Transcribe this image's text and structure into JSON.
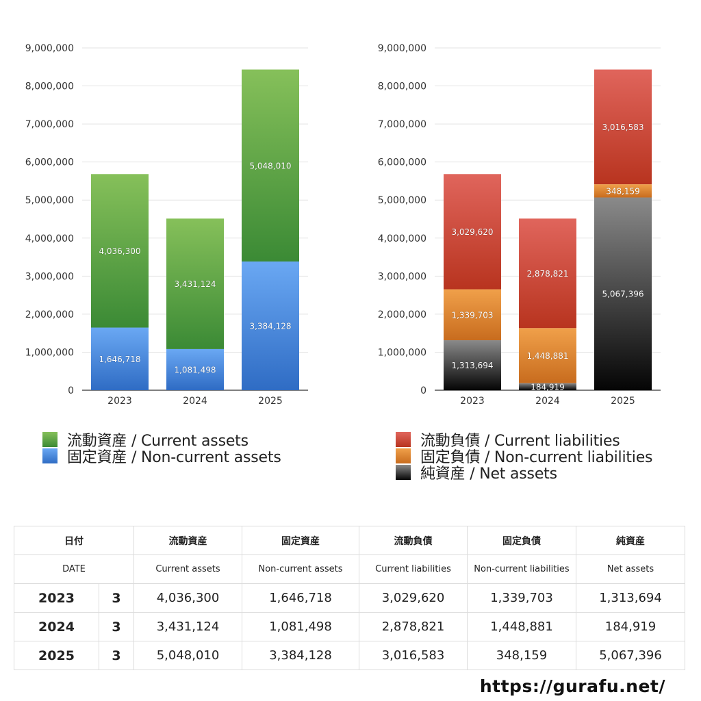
{
  "colors": {
    "current_assets": [
      "#86c05a",
      "#3b8a35"
    ],
    "non_current_assets": [
      "#6aa8f3",
      "#2f6cc4"
    ],
    "current_liabilities": [
      "#e0655c",
      "#b8341f"
    ],
    "non_current_liabilities": [
      "#f0a04a",
      "#c86c1e"
    ],
    "net_assets": [
      "#8a8a8a",
      "#050505"
    ]
  },
  "chart_data": [
    {
      "type": "bar",
      "stacked": true,
      "categories": [
        "2023",
        "2024",
        "2025"
      ],
      "ylim": [
        0,
        9000000
      ],
      "yticks": [
        0,
        1000000,
        2000000,
        3000000,
        4000000,
        5000000,
        6000000,
        7000000,
        8000000,
        9000000
      ],
      "ytick_labels": [
        "0",
        "1,000,000",
        "2,000,000",
        "3,000,000",
        "4,000,000",
        "5,000,000",
        "6,000,000",
        "7,000,000",
        "8,000,000",
        "9,000,000"
      ],
      "grid": true,
      "legend_position": "bottom",
      "series": [
        {
          "name": "固定資産 / Non-current assets",
          "key": "non_current_assets",
          "values": [
            1646718,
            1081498,
            3384128
          ],
          "labels": [
            "1,646,718",
            "1,081,498",
            "3,384,128"
          ]
        },
        {
          "name": "流動資産 / Current assets",
          "key": "current_assets",
          "values": [
            4036300,
            3431124,
            5048010
          ],
          "labels": [
            "4,036,300",
            "3,431,124",
            "5,048,010"
          ]
        }
      ],
      "legend_order": [
        "current_assets",
        "non_current_assets"
      ]
    },
    {
      "type": "bar",
      "stacked": true,
      "categories": [
        "2023",
        "2024",
        "2025"
      ],
      "ylim": [
        0,
        9000000
      ],
      "yticks": [
        0,
        1000000,
        2000000,
        3000000,
        4000000,
        5000000,
        6000000,
        7000000,
        8000000,
        9000000
      ],
      "ytick_labels": [
        "0",
        "1,000,000",
        "2,000,000",
        "3,000,000",
        "4,000,000",
        "5,000,000",
        "6,000,000",
        "7,000,000",
        "8,000,000",
        "9,000,000"
      ],
      "grid": true,
      "legend_position": "bottom",
      "series": [
        {
          "name": "純資産 / Net assets",
          "key": "net_assets",
          "values": [
            1313694,
            184919,
            5067396
          ],
          "labels": [
            "1,313,694",
            "184,919",
            "5,067,396"
          ]
        },
        {
          "name": "固定負債 / Non-current liabilities",
          "key": "non_current_liabilities",
          "values": [
            1339703,
            1448881,
            348159
          ],
          "labels": [
            "1,339,703",
            "1,448,881",
            "348,159"
          ]
        },
        {
          "name": "流動負債 / Current liabilities",
          "key": "current_liabilities",
          "values": [
            3029620,
            2878821,
            3016583
          ],
          "labels": [
            "3,029,620",
            "2,878,821",
            "3,016,583"
          ]
        }
      ],
      "legend_order": [
        "current_liabilities",
        "non_current_liabilities",
        "net_assets"
      ]
    }
  ],
  "legend_left": [
    {
      "label": "流動資産 / Current assets",
      "key": "current_assets"
    },
    {
      "label": "固定資産 / Non-current assets",
      "key": "non_current_assets"
    }
  ],
  "legend_right": [
    {
      "label": "流動負債 / Current liabilities",
      "key": "current_liabilities"
    },
    {
      "label": "固定負債 / Non-current liabilities",
      "key": "non_current_liabilities"
    },
    {
      "label": "純資産 / Net assets",
      "key": "net_assets"
    }
  ],
  "table": {
    "header_ja": [
      "日付",
      "流動資産",
      "固定資産",
      "流動負債",
      "固定負債",
      "純資産"
    ],
    "header_en": [
      "DATE",
      "Current assets",
      "Non-current assets",
      "Current liabilities",
      "Non-current liabilities",
      "Net assets"
    ],
    "rows": [
      {
        "year": "2023",
        "month": "3",
        "cells": [
          "4,036,300",
          "1,646,718",
          "3,029,620",
          "1,339,703",
          "1,313,694"
        ]
      },
      {
        "year": "2024",
        "month": "3",
        "cells": [
          "3,431,124",
          "1,081,498",
          "2,878,821",
          "1,448,881",
          "184,919"
        ]
      },
      {
        "year": "2025",
        "month": "3",
        "cells": [
          "5,048,010",
          "3,384,128",
          "3,016,583",
          "348,159",
          "5,067,396"
        ]
      }
    ]
  },
  "footer": {
    "url": "https://gurafu.net/"
  }
}
